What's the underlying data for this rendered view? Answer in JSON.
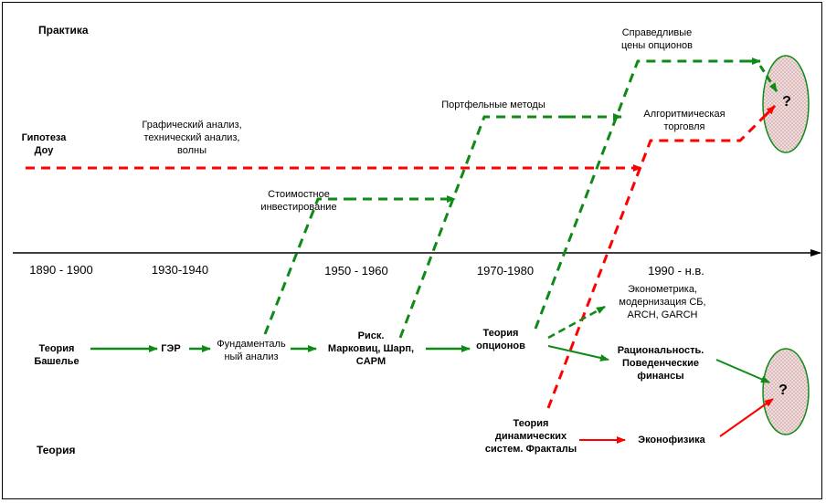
{
  "labels": {
    "practice": "Практика",
    "theory": "Теория",
    "dow": "Гипотеза\nДоу",
    "graphic": "Графический анализ,\nтехнический анализ,\nволны",
    "value_invest": "Стоимостное\nинвестирование",
    "portfolio": "Портфельные методы",
    "fair_prices": "Справедливые\nцены опционов",
    "algo": "Алгоритмическая\nторговля",
    "bachelier": "Теория\nБашелье",
    "gar": "ГЭР",
    "fundamental": "Фундаменталь\nный анализ",
    "risk": "Риск.\nМарковиц, Шарп,\nCAPM",
    "options_theory": "Теория\nопционов",
    "econometrics": "Эконометрика,\nмодернизация СБ,\nARCH, GARCH",
    "rationality": "Рациональность.\nПоведенческие\nфинансы",
    "dynamic_systems": "Теория\nдинамических\nсистем. Фракталы",
    "econophysics": "Эконофизика",
    "question": "?"
  },
  "timeline": {
    "periods": [
      "1890 - 1900",
      "1930-1940",
      "1950 - 1960",
      "1970-1980",
      "1990 - н.в."
    ]
  },
  "colors": {
    "green": "#0e8a16",
    "red": "#ff0000",
    "ellipse_fill": "#e9cfcf",
    "ellipse_stroke": "#0e8a16"
  }
}
